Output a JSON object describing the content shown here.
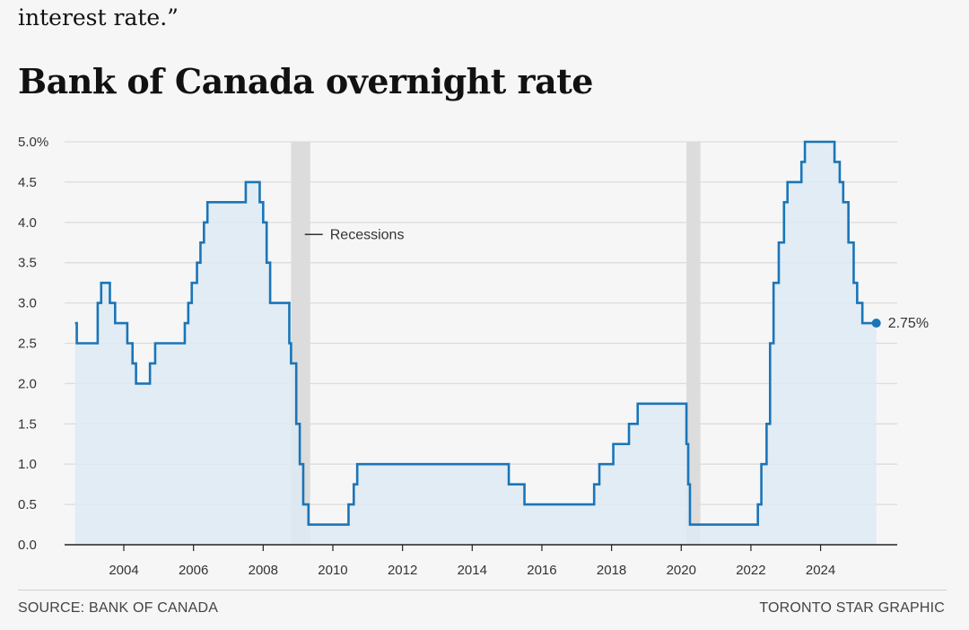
{
  "page": {
    "lead_text": "interest rate.”",
    "title": "Bank of Canada overnight rate",
    "source": "SOURCE: BANK OF CANADA",
    "credit": "TORONTO STAR GRAPHIC"
  },
  "colors": {
    "line": "#1a75b8",
    "area": "#deeaf3",
    "recession": "#dcdcdc",
    "grid": "#dcdcdc",
    "axis": "#222222"
  },
  "chart_data": {
    "type": "line",
    "title": "Bank of Canada overnight rate",
    "xlabel": "",
    "ylabel": "",
    "xlim": [
      2002.3,
      2026.2
    ],
    "ylim": [
      0,
      5
    ],
    "yticks": [
      0,
      0.5,
      1.0,
      1.5,
      2.0,
      2.5,
      3.0,
      3.5,
      4.0,
      4.5,
      5.0
    ],
    "ytick_labels": [
      "0.0",
      "0.5",
      "1.0",
      "1.5",
      "2.0",
      "2.5",
      "3.0",
      "3.5",
      "4.0",
      "4.5",
      "5.0%"
    ],
    "xticks": [
      2004,
      2006,
      2008,
      2010,
      2012,
      2014,
      2016,
      2018,
      2020,
      2022,
      2024
    ],
    "xtick_labels": [
      "2004",
      "2006",
      "2008",
      "2010",
      "2012",
      "2014",
      "2016",
      "2018",
      "2020",
      "2022",
      "2024"
    ],
    "grid": true,
    "step": true,
    "recessions": [
      [
        2008.8,
        2009.35
      ],
      [
        2020.15,
        2020.55
      ]
    ],
    "recession_label": "Recessions",
    "end_label": "2.75%",
    "series": [
      {
        "x": [
          2002.6,
          2002.65,
          2003.25,
          2003.35,
          2003.6,
          2003.75,
          2004.1,
          2004.25,
          2004.35,
          2004.75,
          2004.9,
          2005.75,
          2005.85,
          2005.95,
          2006.1,
          2006.2,
          2006.3,
          2006.4,
          2007.5,
          2007.9,
          2008.0,
          2008.1,
          2008.2,
          2008.3,
          2008.75,
          2008.8,
          2008.95,
          2009.05,
          2009.15,
          2009.3,
          2010.45,
          2010.6,
          2010.7,
          2015.05,
          2015.5,
          2017.5,
          2017.65,
          2017.75,
          2018.05,
          2018.5,
          2018.75,
          2020.15,
          2020.2,
          2020.25,
          2022.2,
          2022.3,
          2022.45,
          2022.55,
          2022.65,
          2022.8,
          2022.95,
          2023.05,
          2023.2,
          2023.45,
          2023.55,
          2024.4,
          2024.55,
          2024.65,
          2024.8,
          2024.95,
          2025.05,
          2025.2,
          2025.6
        ],
        "y": [
          2.75,
          2.5,
          3.0,
          3.25,
          3.0,
          2.75,
          2.5,
          2.25,
          2.0,
          2.25,
          2.5,
          2.75,
          3.0,
          3.25,
          3.5,
          3.75,
          4.0,
          4.25,
          4.5,
          4.25,
          4.0,
          3.5,
          3.0,
          3.0,
          2.5,
          2.25,
          1.5,
          1.0,
          0.5,
          0.25,
          0.5,
          0.75,
          1.0,
          0.75,
          0.5,
          0.75,
          1.0,
          1.0,
          1.25,
          1.5,
          1.75,
          1.25,
          0.75,
          0.25,
          0.5,
          1.0,
          1.5,
          2.5,
          3.25,
          3.75,
          4.25,
          4.5,
          4.5,
          4.75,
          5.0,
          4.75,
          4.5,
          4.25,
          3.75,
          3.25,
          3.0,
          2.75,
          2.75
        ]
      }
    ]
  }
}
